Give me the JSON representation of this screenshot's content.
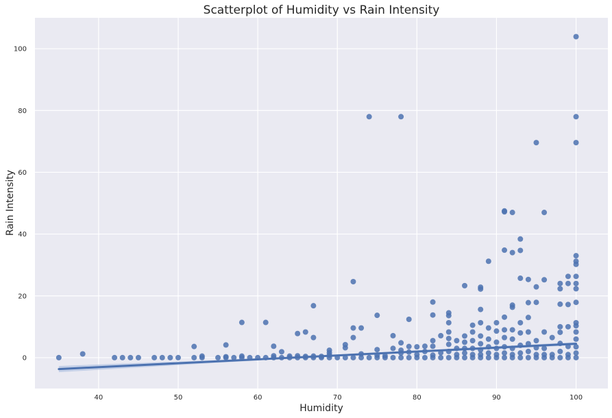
{
  "chart_data": {
    "type": "scatter",
    "title": "Scatterplot of Humidity vs Rain Intensity",
    "xlabel": "Humidity",
    "ylabel": "Rain Intensity",
    "xlim": [
      32,
      104
    ],
    "ylim": [
      -10,
      110
    ],
    "x_ticks": [
      40,
      50,
      60,
      70,
      80,
      90,
      100
    ],
    "y_ticks": [
      0,
      20,
      40,
      60,
      80,
      100
    ],
    "grid": true,
    "style": "seaborn-darkgrid",
    "colors": {
      "background": "#eaeaf2",
      "grid": "#ffffff",
      "points": "#4c72b0",
      "regression_line": "#4c72b0",
      "confidence_band": "#a9bcdf"
    },
    "regression": {
      "x": [
        35,
        100
      ],
      "y": [
        -3.7,
        4.5
      ]
    },
    "series": [
      {
        "points": [
          [
            35,
            0
          ],
          [
            38,
            1.2
          ],
          [
            42,
            0
          ],
          [
            43,
            0
          ],
          [
            44,
            0
          ],
          [
            45,
            0
          ],
          [
            47,
            0
          ],
          [
            48,
            0
          ],
          [
            49,
            0
          ],
          [
            50,
            0
          ],
          [
            52,
            0
          ],
          [
            52,
            3.6
          ],
          [
            53,
            0
          ],
          [
            53,
            0.5
          ],
          [
            55,
            0
          ],
          [
            56,
            0
          ],
          [
            56,
            0.3
          ],
          [
            56,
            4.1
          ],
          [
            57,
            0
          ],
          [
            58,
            0
          ],
          [
            58,
            0.5
          ],
          [
            58,
            11.4
          ],
          [
            59,
            0
          ],
          [
            60,
            0
          ],
          [
            61,
            0
          ],
          [
            61,
            11.4
          ],
          [
            62,
            0
          ],
          [
            62,
            0.6
          ],
          [
            62,
            3.7
          ],
          [
            63,
            0
          ],
          [
            63,
            1.9
          ],
          [
            64,
            0
          ],
          [
            64,
            0.5
          ],
          [
            65,
            0
          ],
          [
            65,
            0.6
          ],
          [
            65,
            7.8
          ],
          [
            66,
            0
          ],
          [
            66,
            8.3
          ],
          [
            66,
            0.4
          ],
          [
            67,
            0
          ],
          [
            67,
            0.5
          ],
          [
            67,
            6.5
          ],
          [
            67,
            16.8
          ],
          [
            68,
            0
          ],
          [
            68,
            0.4
          ],
          [
            69,
            0
          ],
          [
            69,
            0.8
          ],
          [
            69,
            1.6
          ],
          [
            69,
            2.4
          ],
          [
            70,
            0
          ],
          [
            71,
            0
          ],
          [
            71,
            3.2
          ],
          [
            71,
            4.2
          ],
          [
            72,
            0
          ],
          [
            72,
            6.5
          ],
          [
            72,
            9.6
          ],
          [
            72,
            24.6
          ],
          [
            73,
            0
          ],
          [
            73,
            1.2
          ],
          [
            73,
            9.6
          ],
          [
            74,
            0
          ],
          [
            74,
            78
          ],
          [
            75,
            0
          ],
          [
            75,
            0.8
          ],
          [
            75,
            2.6
          ],
          [
            75,
            13.7
          ],
          [
            76,
            0
          ],
          [
            76,
            0.6
          ],
          [
            77,
            0
          ],
          [
            77,
            3
          ],
          [
            77,
            7.1
          ],
          [
            78,
            0
          ],
          [
            78,
            1.5
          ],
          [
            78,
            2.4
          ],
          [
            78,
            4.8
          ],
          [
            78,
            78
          ],
          [
            79,
            0
          ],
          [
            79,
            1.8
          ],
          [
            79,
            3.6
          ],
          [
            79,
            12.4
          ],
          [
            80,
            0
          ],
          [
            80,
            1
          ],
          [
            80,
            3.5
          ],
          [
            81,
            0
          ],
          [
            81,
            2
          ],
          [
            81,
            3.7
          ],
          [
            82,
            0
          ],
          [
            82,
            0.8
          ],
          [
            82,
            3.7
          ],
          [
            82,
            5.5
          ],
          [
            82,
            13.8
          ],
          [
            82,
            18
          ],
          [
            83,
            0
          ],
          [
            83,
            1.6
          ],
          [
            83,
            7.1
          ],
          [
            84,
            0
          ],
          [
            84,
            2
          ],
          [
            84,
            4.3
          ],
          [
            84,
            6.2
          ],
          [
            84,
            8.3
          ],
          [
            84,
            11.3
          ],
          [
            84,
            13.6
          ],
          [
            84,
            14.5
          ],
          [
            85,
            0
          ],
          [
            85,
            1
          ],
          [
            85,
            3
          ],
          [
            85,
            5.5
          ],
          [
            86,
            0
          ],
          [
            86,
            1.5
          ],
          [
            86,
            3
          ],
          [
            86,
            5
          ],
          [
            86,
            7
          ],
          [
            86,
            23.3
          ],
          [
            87,
            0
          ],
          [
            87,
            1
          ],
          [
            87,
            3
          ],
          [
            87,
            5.5
          ],
          [
            87,
            8.3
          ],
          [
            87,
            10.5
          ],
          [
            88,
            0
          ],
          [
            88,
            1
          ],
          [
            88,
            2.5
          ],
          [
            88,
            4.5
          ],
          [
            88,
            7
          ],
          [
            88,
            11.3
          ],
          [
            88,
            15.6
          ],
          [
            88,
            22.2
          ],
          [
            88,
            22.8
          ],
          [
            89,
            0
          ],
          [
            89,
            1.5
          ],
          [
            89,
            3.5
          ],
          [
            89,
            6
          ],
          [
            89,
            9.6
          ],
          [
            89,
            31.2
          ],
          [
            90,
            0
          ],
          [
            90,
            1
          ],
          [
            90,
            3
          ],
          [
            90,
            5
          ],
          [
            90,
            8.6
          ],
          [
            90,
            11.3
          ],
          [
            91,
            0
          ],
          [
            91,
            1.5
          ],
          [
            91,
            3.5
          ],
          [
            91,
            6.5
          ],
          [
            91,
            9
          ],
          [
            91,
            13.1
          ],
          [
            91,
            34.8
          ],
          [
            91,
            47.2
          ],
          [
            91,
            47.5
          ],
          [
            92,
            0
          ],
          [
            92,
            1
          ],
          [
            92,
            3
          ],
          [
            92,
            6
          ],
          [
            92,
            9
          ],
          [
            92,
            16.3
          ],
          [
            92,
            17
          ],
          [
            92,
            34
          ],
          [
            92,
            47
          ],
          [
            93,
            0
          ],
          [
            93,
            1.5
          ],
          [
            93,
            4
          ],
          [
            93,
            8
          ],
          [
            93,
            11.3
          ],
          [
            93,
            25.7
          ],
          [
            93,
            34.7
          ],
          [
            93,
            38.4
          ],
          [
            94,
            0
          ],
          [
            94,
            2
          ],
          [
            94,
            4.5
          ],
          [
            94,
            8.3
          ],
          [
            94,
            13
          ],
          [
            94,
            17.8
          ],
          [
            94,
            25.3
          ],
          [
            95,
            0
          ],
          [
            95,
            1
          ],
          [
            95,
            3.2
          ],
          [
            95,
            5.5
          ],
          [
            95,
            17.9
          ],
          [
            95,
            22.9
          ],
          [
            95,
            69.6
          ],
          [
            96,
            0
          ],
          [
            96,
            1
          ],
          [
            96,
            3
          ],
          [
            96,
            8.3
          ],
          [
            96,
            25.2
          ],
          [
            96,
            47
          ],
          [
            97,
            0
          ],
          [
            97,
            1
          ],
          [
            97,
            6.5
          ],
          [
            98,
            0
          ],
          [
            98,
            2
          ],
          [
            98,
            4.6
          ],
          [
            98,
            8.2
          ],
          [
            98,
            10
          ],
          [
            98,
            17.3
          ],
          [
            98,
            22.3
          ],
          [
            98,
            24
          ],
          [
            99,
            0
          ],
          [
            99,
            1
          ],
          [
            99,
            3.6
          ],
          [
            99,
            10
          ],
          [
            99,
            17.2
          ],
          [
            99,
            24
          ],
          [
            99,
            26.3
          ],
          [
            100,
            0
          ],
          [
            100,
            1.5
          ],
          [
            100,
            3.5
          ],
          [
            100,
            6
          ],
          [
            100,
            8.3
          ],
          [
            100,
            10.3
          ],
          [
            100,
            11.3
          ],
          [
            100,
            17.9
          ],
          [
            100,
            22.3
          ],
          [
            100,
            24
          ],
          [
            100,
            26.3
          ],
          [
            100,
            30.2
          ],
          [
            100,
            31.2
          ],
          [
            100,
            33
          ],
          [
            100,
            69.6
          ],
          [
            100,
            78
          ],
          [
            100,
            103.9
          ]
        ]
      }
    ]
  }
}
